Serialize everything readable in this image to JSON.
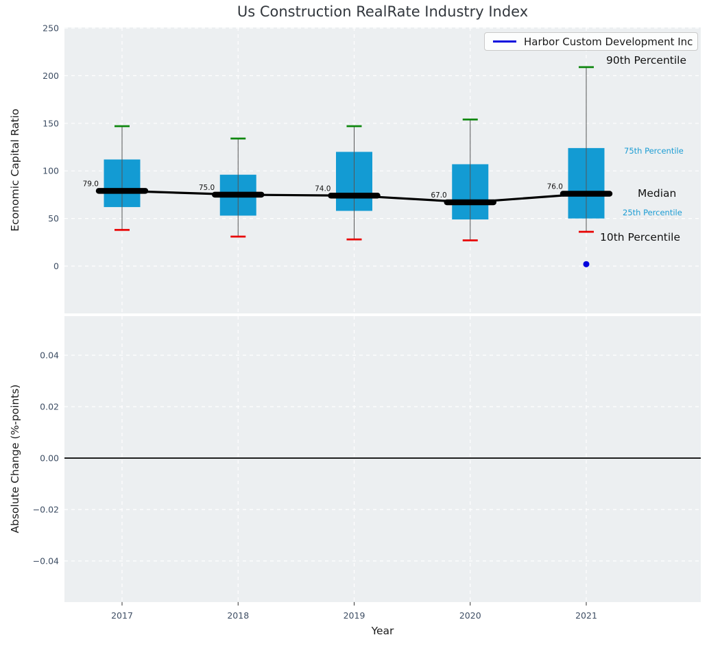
{
  "title": "Us Construction RealRate Industry Index",
  "legend": {
    "label": "Harbor Custom Development Inc"
  },
  "axes": {
    "xlabel": "Year",
    "x_tick_labels": [
      "2017",
      "2018",
      "2019",
      "2020",
      "2021"
    ],
    "top": {
      "ylabel": "Economic Capital Ratio",
      "yticks": [
        0,
        50,
        100,
        150,
        200,
        250
      ],
      "ytick_labels": [
        "0",
        "50",
        "100",
        "150",
        "200",
        "250"
      ],
      "ylim": [
        -50,
        251
      ],
      "grid": "white-dashed"
    },
    "bottom": {
      "ylabel": "Absolute Change (%-points)",
      "yticks": [
        0.04,
        0.02,
        0,
        -0.02,
        -0.04
      ],
      "ytick_labels": [
        "0.04",
        "0.02",
        "0.00",
        "−0.02",
        "−0.04"
      ],
      "ylim": [
        -0.056,
        0.055
      ],
      "grid": "white-dashed",
      "zero_line": true
    }
  },
  "annotations": {
    "p90_label": "90th Percentile",
    "p75_label": "75th Percentile",
    "median_label": "Median",
    "p25_label": "25th Percentile",
    "p10_label": "10th Percentile"
  },
  "chart_data": {
    "type": "boxplot-timeseries",
    "title": "Us Construction RealRate Industry Index",
    "x": [
      2017,
      2018,
      2019,
      2020,
      2021
    ],
    "series": [
      {
        "name": "90th Percentile",
        "values": [
          147,
          134,
          147,
          154,
          209
        ]
      },
      {
        "name": "75th Percentile",
        "values": [
          112,
          96,
          120,
          107,
          124
        ]
      },
      {
        "name": "Median",
        "values": [
          79,
          75,
          74,
          67,
          76
        ]
      },
      {
        "name": "25th Percentile",
        "values": [
          62,
          53,
          58,
          49,
          50
        ]
      },
      {
        "name": "10th Percentile",
        "values": [
          38,
          31,
          28,
          27,
          36
        ]
      }
    ],
    "median_value_labels": [
      "79.0",
      "75.0",
      "74.0",
      "67.0",
      "76.0"
    ],
    "company_point": {
      "name": "Harbor Custom Development Inc",
      "x": 2021,
      "value": 2
    },
    "bottom_panel_series": [],
    "colors": {
      "box_fill": "#139bd3",
      "p90_cap": "#0e870e",
      "p10_cap": "#e80000",
      "median_line": "#000000",
      "whisker": "#555555",
      "company_blue": "#0202dd",
      "annotation_blue": "#1b9cd3",
      "panel_background": "#eceff1",
      "gridline": "#ffffff",
      "tick_label": "#3d4d63"
    }
  }
}
